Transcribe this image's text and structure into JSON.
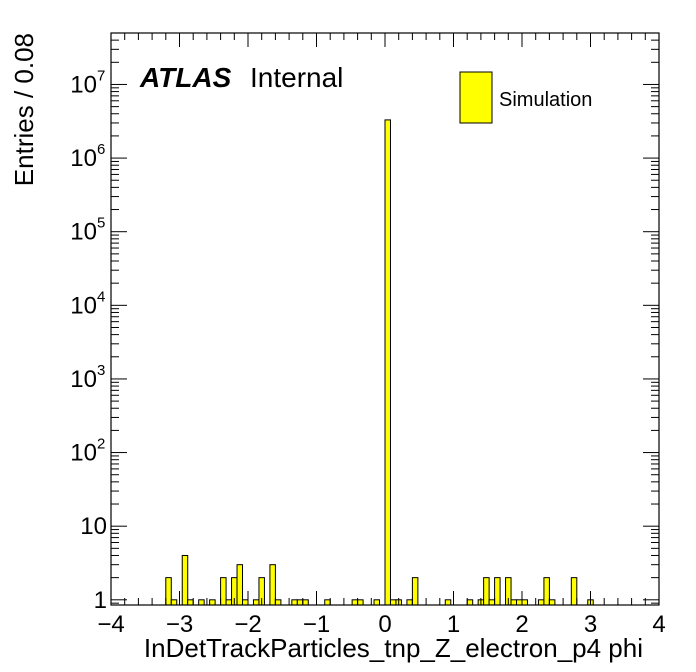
{
  "chart_data": {
    "type": "bar",
    "title": "",
    "xlabel": "InDetTrackParticles_tnp_Z_electron_p4 phi",
    "ylabel": "Entries / 0.08",
    "xlim": [
      -4,
      4
    ],
    "ylim": [
      0.85,
      50000000
    ],
    "yscale": "log",
    "bin_width": 0.08,
    "grid": false,
    "legend_position": "top-right",
    "fill_color": "#ffff00",
    "edge_color": "#000000",
    "atlas_label": "ATLAS",
    "atlas_status": "Internal",
    "x_ticks": [
      "−4",
      "−3",
      "−2",
      "−1",
      "0",
      "1",
      "2",
      "3",
      "4"
    ],
    "y_ticks": [
      {
        "value": 1,
        "label": "1",
        "exp": ""
      },
      {
        "value": 10,
        "label": "10",
        "exp": ""
      },
      {
        "value": 100,
        "label": "10",
        "exp": "2"
      },
      {
        "value": 1000,
        "label": "10",
        "exp": "3"
      },
      {
        "value": 10000,
        "label": "10",
        "exp": "4"
      },
      {
        "value": 100000,
        "label": "10",
        "exp": "5"
      },
      {
        "value": 1000000,
        "label": "10",
        "exp": "6"
      },
      {
        "value": 10000000,
        "label": "10",
        "exp": "7"
      }
    ],
    "series": [
      {
        "name": "Simulation",
        "bins": [
          {
            "x": -3.2,
            "y": 2
          },
          {
            "x": -3.12,
            "y": 1
          },
          {
            "x": -2.96,
            "y": 4
          },
          {
            "x": -2.88,
            "y": 1
          },
          {
            "x": -2.72,
            "y": 1
          },
          {
            "x": -2.56,
            "y": 1
          },
          {
            "x": -2.4,
            "y": 2
          },
          {
            "x": -2.32,
            "y": 1
          },
          {
            "x": -2.24,
            "y": 2
          },
          {
            "x": -2.16,
            "y": 3
          },
          {
            "x": -2.08,
            "y": 1
          },
          {
            "x": -1.92,
            "y": 1
          },
          {
            "x": -1.84,
            "y": 2
          },
          {
            "x": -1.68,
            "y": 3
          },
          {
            "x": -1.6,
            "y": 1
          },
          {
            "x": -1.36,
            "y": 1
          },
          {
            "x": -1.28,
            "y": 1
          },
          {
            "x": -1.2,
            "y": 1
          },
          {
            "x": -0.88,
            "y": 1
          },
          {
            "x": -0.48,
            "y": 1
          },
          {
            "x": -0.4,
            "y": 1
          },
          {
            "x": -0.16,
            "y": 1
          },
          {
            "x": 0.0,
            "y": 3300000
          },
          {
            "x": 0.08,
            "y": 1
          },
          {
            "x": 0.16,
            "y": 1
          },
          {
            "x": 0.32,
            "y": 1
          },
          {
            "x": 0.4,
            "y": 2
          },
          {
            "x": 0.88,
            "y": 1
          },
          {
            "x": 1.2,
            "y": 1
          },
          {
            "x": 1.36,
            "y": 1
          },
          {
            "x": 1.44,
            "y": 2
          },
          {
            "x": 1.52,
            "y": 1
          },
          {
            "x": 1.6,
            "y": 2
          },
          {
            "x": 1.76,
            "y": 2
          },
          {
            "x": 1.84,
            "y": 1
          },
          {
            "x": 1.92,
            "y": 1
          },
          {
            "x": 2.0,
            "y": 1
          },
          {
            "x": 2.24,
            "y": 1
          },
          {
            "x": 2.32,
            "y": 2
          },
          {
            "x": 2.4,
            "y": 1
          },
          {
            "x": 2.72,
            "y": 2
          },
          {
            "x": 2.96,
            "y": 1
          }
        ]
      }
    ]
  }
}
